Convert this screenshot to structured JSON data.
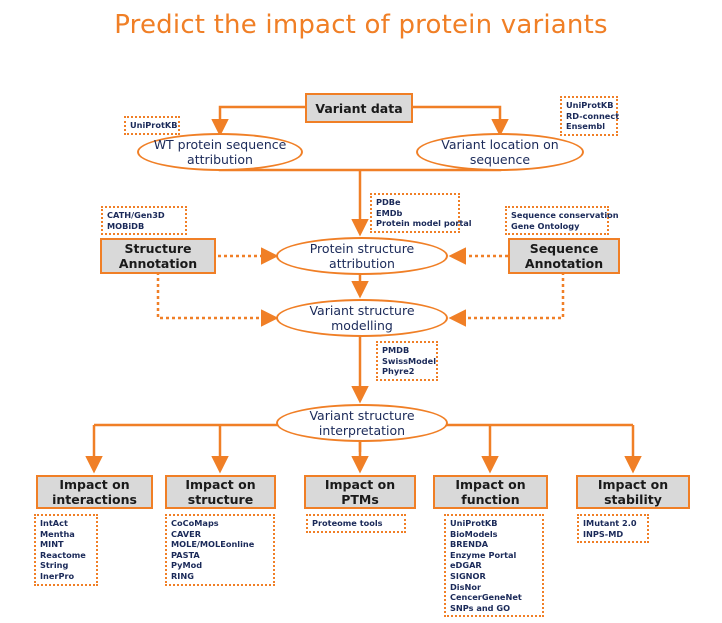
{
  "title": "Predict the impact of protein variants",
  "nodes": {
    "variant_data": "Variant data",
    "wt_sequence": "WT protein sequence\nattribution",
    "variant_location": "Variant location on\nsequence",
    "structure_annotation": "Structure\nAnnotation",
    "protein_structure": "Protein structure\nattribution",
    "sequence_annotation": "Sequence\nAnnotation",
    "variant_modelling": "Variant structure\nmodelling",
    "variant_interpretation": "Variant structure\ninterpretation",
    "impact_interactions": "Impact on\ninteractions",
    "impact_structure": "Impact on\nstructure",
    "impact_ptms": "Impact on PTMs",
    "impact_function": "Impact on\nfunction",
    "impact_stability": "Impact on\nstability"
  },
  "sources": {
    "wt_sequence": [
      "UniProtKB"
    ],
    "variant_location": [
      "UniProtKB",
      "RD-connect",
      "Ensembl"
    ],
    "protein_structure": [
      "PDBe",
      "EMDb",
      "Protein model portal"
    ],
    "structure_annotation": [
      "CATH/Gen3D",
      "MOBiDB"
    ],
    "sequence_annotation": [
      "Sequence conservation",
      "Gene Ontology"
    ],
    "variant_modelling": [
      "PMDB",
      "SwissModel",
      "Phyre2"
    ],
    "impact_interactions": [
      "IntAct",
      "Mentha",
      "MINT",
      "Reactome",
      "String",
      "InerPro"
    ],
    "impact_structure": [
      "CoCoMaps",
      "CAVER",
      "MOLE/MOLEonline",
      "PASTA",
      "PyMod",
      "RING"
    ],
    "impact_ptms": [
      "Proteome tools"
    ],
    "impact_function": [
      "UniProtKB",
      "BioModels",
      "BRENDA",
      "Enzyme Portal",
      "eDGAR",
      "SIGNOR",
      "DisNor",
      "CencerGeneNet",
      "SNPs and GO"
    ],
    "impact_stability": [
      "IMutant 2.0",
      "INPS-MD"
    ]
  },
  "colors": {
    "accent": "#f07f26",
    "box_fill": "#d9d9d9",
    "text_dark": "#1b2a59"
  }
}
